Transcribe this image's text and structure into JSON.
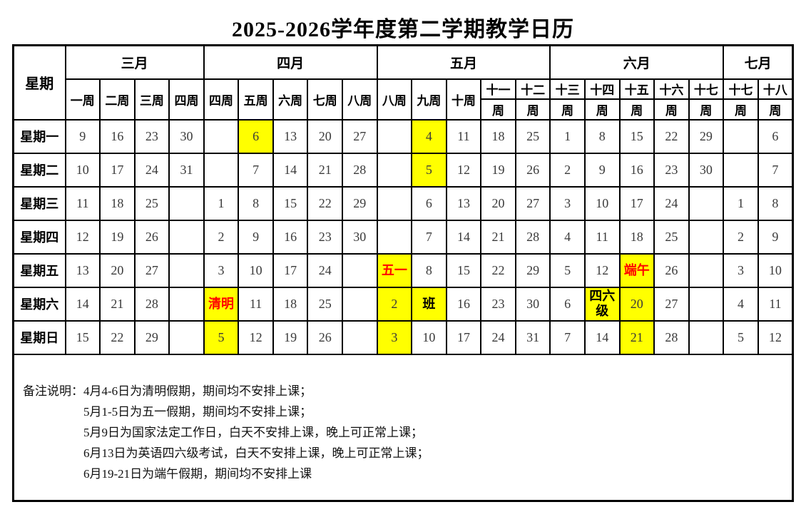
{
  "title": "2025-2026学年度第二学期教学日历",
  "colors": {
    "highlight": "#FFFF00",
    "holiday_text": "#FF0000",
    "border": "#000000",
    "day_text": "#3a3a3a"
  },
  "calendar": {
    "header": {
      "corner": "星期",
      "months": [
        {
          "label": "三月",
          "span": 4
        },
        {
          "label": "四月",
          "span": 5
        },
        {
          "label": "五月",
          "span": 5
        },
        {
          "label": "六月",
          "span": 5
        },
        {
          "label": "七月",
          "span": 2
        }
      ],
      "weeks": [
        {
          "top": "一周"
        },
        {
          "top": "二周"
        },
        {
          "top": "三周"
        },
        {
          "top": "四周"
        },
        {
          "top": "四周"
        },
        {
          "top": "五周"
        },
        {
          "top": "六周"
        },
        {
          "top": "七周"
        },
        {
          "top": "八周"
        },
        {
          "top": "八周"
        },
        {
          "top": "九周"
        },
        {
          "top": "十周"
        },
        {
          "top": "十一",
          "bottom": "周"
        },
        {
          "top": "十二",
          "bottom": "周"
        },
        {
          "top": "十三",
          "bottom": "周"
        },
        {
          "top": "十四",
          "bottom": "周"
        },
        {
          "top": "十五",
          "bottom": "周"
        },
        {
          "top": "十六",
          "bottom": "周"
        },
        {
          "top": "十七",
          "bottom": "周"
        },
        {
          "top": "十七",
          "bottom": "周"
        },
        {
          "top": "十八",
          "bottom": "周"
        }
      ]
    },
    "rows": [
      {
        "label": "星期一",
        "cells": [
          "9",
          "16",
          "23",
          "30",
          "",
          {
            "t": "6",
            "hl": true
          },
          "13",
          "20",
          "27",
          "",
          {
            "t": "4",
            "hl": true
          },
          "11",
          "18",
          "25",
          "1",
          "8",
          "15",
          "22",
          "29",
          "",
          "6"
        ]
      },
      {
        "label": "星期二",
        "cells": [
          "10",
          "17",
          "24",
          "31",
          "",
          "7",
          "14",
          "21",
          "28",
          "",
          {
            "t": "5",
            "hl": true
          },
          "12",
          "19",
          "26",
          "2",
          "9",
          "16",
          "23",
          "30",
          "",
          "7"
        ]
      },
      {
        "label": "星期三",
        "cells": [
          "11",
          "18",
          "25",
          "",
          "1",
          "8",
          "15",
          "22",
          "29",
          "",
          "6",
          "13",
          "20",
          "27",
          "3",
          "10",
          "17",
          "24",
          "",
          "1",
          "8"
        ]
      },
      {
        "label": "星期四",
        "cells": [
          "12",
          "19",
          "26",
          "",
          "2",
          "9",
          "16",
          "23",
          "30",
          "",
          "7",
          "14",
          "21",
          "28",
          "4",
          "11",
          "18",
          "25",
          "",
          "2",
          "9"
        ]
      },
      {
        "label": "星期五",
        "cells": [
          "13",
          "20",
          "27",
          "",
          "3",
          "10",
          "17",
          "24",
          "",
          {
            "t": "五一",
            "hl": true,
            "red": true
          },
          "8",
          "15",
          "22",
          "29",
          "5",
          "12",
          {
            "t": "端午",
            "hl": true,
            "red": true
          },
          "26",
          "",
          "3",
          "10"
        ]
      },
      {
        "label": "星期六",
        "cells": [
          "14",
          "21",
          "28",
          "",
          {
            "t": "清明",
            "hl": true,
            "red": true
          },
          "11",
          "18",
          "25",
          "",
          {
            "t": "2",
            "hl": true
          },
          {
            "t": "班",
            "hl": true,
            "bold": true
          },
          "16",
          "23",
          "30",
          "6",
          {
            "t": "四六级",
            "hl": true,
            "bold": true
          },
          {
            "t": "20",
            "hl": true
          },
          "27",
          "",
          "4",
          "11"
        ]
      },
      {
        "label": "星期日",
        "cells": [
          "15",
          "22",
          "29",
          "",
          {
            "t": "5",
            "hl": true
          },
          "12",
          "19",
          "26",
          "",
          {
            "t": "3",
            "hl": true
          },
          "10",
          "17",
          "24",
          "31",
          "7",
          "14",
          {
            "t": "21",
            "hl": true
          },
          "28",
          "",
          "5",
          "12"
        ]
      }
    ]
  },
  "notes": {
    "label": "备注说明：",
    "lines": [
      "4月4-6日为清明假期，期间均不安排上课；",
      "5月1-5日为五一假期，期间均不安排上课；",
      "5月9日为国家法定工作日，白天不安排上课，晚上可正常上课；",
      "6月13日为英语四六级考试，白天不安排上课，晚上可正常上课；",
      "6月19-21日为端午假期，期间均不安排上课"
    ]
  }
}
